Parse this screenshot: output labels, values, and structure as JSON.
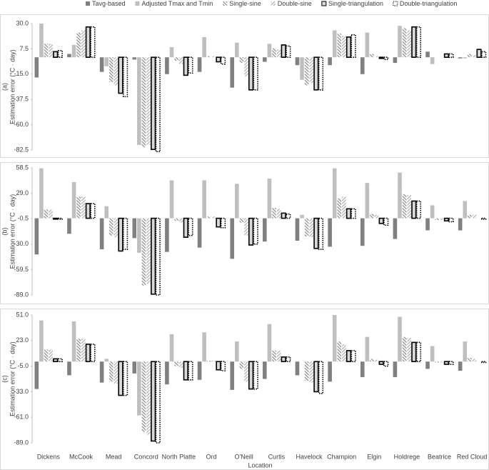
{
  "chart_data": [
    {
      "type": "bar",
      "panel_label": "(a)",
      "y_label": "Estimation  error  (°C · day)",
      "ylim": [
        -82.5,
        30
      ],
      "yticks": [
        {
          "value": -82.5,
          "label": "-82.5"
        },
        {
          "value": -60,
          "label": "-60.0"
        },
        -37.5,
        {
          "value": -15,
          "label": "-15.0"
        },
        7.5,
        {
          "value": 30,
          "label": "30.0"
        }
      ],
      "series": [
        {
          "name": "Tavg-based",
          "color": "#808080",
          "pattern": "solid",
          "values": [
            -18,
            3,
            -13,
            -2,
            -15,
            -13,
            -27,
            -4,
            -7,
            -7,
            -15,
            -5,
            5,
            -1
          ]
        },
        {
          "name": "Adjusted Tmax and Tmin",
          "color": "#bfbfbf",
          "pattern": "solid",
          "values": [
            30,
            11,
            -8,
            -78,
            9,
            18,
            13,
            12,
            -20,
            24,
            22,
            28,
            -6,
            -1
          ]
        },
        {
          "name": "Single-sine",
          "color": "#7f7f7f",
          "pattern": "hatch-back",
          "values": [
            12,
            22,
            -22,
            -80,
            -3,
            1,
            -5,
            8,
            -25,
            21,
            3,
            26,
            0,
            3
          ]
        },
        {
          "name": "Double-sine",
          "color": "#a6a6a6",
          "pattern": "hatch-fwd",
          "values": [
            12,
            24,
            -25,
            -78,
            -6,
            1,
            -17,
            7,
            -23,
            19,
            1,
            24,
            0,
            2
          ]
        },
        {
          "name": "Single-triangulation",
          "color": "#d9d9d9",
          "pattern": "outline",
          "values": [
            5,
            27,
            -32,
            -82,
            -16,
            -4,
            -29,
            11,
            -29,
            18,
            -1,
            27,
            3,
            7
          ]
        },
        {
          "name": "Double-triangulation",
          "color": "#ffffff",
          "pattern": "dotted",
          "values": [
            6,
            27,
            -35,
            -84,
            -14,
            -6,
            -29,
            10,
            -29,
            20,
            -2,
            27,
            3,
            5
          ]
        }
      ]
    },
    {
      "type": "bar",
      "panel_label": "(b)",
      "y_label": "Estimation  error  (°C · day)",
      "ylim": [
        -89,
        58.5
      ],
      "yticks": [
        {
          "value": -89,
          "label": "-89.0"
        },
        -59.5,
        {
          "value": -30,
          "label": "-30.0"
        },
        -0.5,
        {
          "value": 29,
          "label": "29.0"
        },
        58.5
      ],
      "series": [
        {
          "values": [
            -42,
            -18,
            -36,
            -23,
            -39,
            -34,
            -47,
            -27,
            -26,
            -33,
            -32,
            -24,
            -14,
            -14
          ]
        },
        {
          "values": [
            58,
            42,
            14,
            -40,
            44,
            44,
            40,
            46,
            4,
            58,
            41,
            53,
            15,
            20
          ]
        },
        {
          "values": [
            10,
            25,
            -20,
            -78,
            -3,
            2,
            -5,
            12,
            -21,
            23,
            5,
            28,
            -2,
            4
          ]
        },
        {
          "values": [
            10,
            25,
            -22,
            -76,
            -5,
            2,
            -20,
            11,
            -22,
            25,
            4,
            27,
            -2,
            4
          ]
        },
        {
          "values": [
            -1,
            17,
            -38,
            -88,
            -22,
            -10,
            -31,
            6,
            -35,
            11,
            -6,
            20,
            -3,
            0
          ]
        },
        {
          "values": [
            -1,
            17,
            -36,
            -89,
            -20,
            -11,
            -30,
            5,
            -36,
            11,
            -8,
            20,
            -4,
            -1
          ]
        }
      ]
    },
    {
      "type": "bar",
      "panel_label": "(c)",
      "y_label": "Estimation  error  (°C · day)",
      "x_label": "Location",
      "categories": [
        "Dickens",
        "McCook",
        "Mead",
        "Concord",
        "North Platte",
        "Ord",
        "O'Neill",
        "Curtis",
        "Havelock",
        "Champion",
        "Elgin",
        "Holdrege",
        "Beatrice",
        "Red Cloud"
      ],
      "ylim": [
        -89,
        51
      ],
      "yticks": [
        {
          "value": -89,
          "label": "-89.0"
        },
        {
          "value": -61,
          "label": "-61.0"
        },
        {
          "value": -33,
          "label": "-33.0"
        },
        {
          "value": -5,
          "label": "-5.0"
        },
        {
          "value": 23,
          "label": "23.0"
        },
        {
          "value": 51,
          "label": "51.0"
        }
      ],
      "series": [
        {
          "values": [
            -30,
            -15,
            -23,
            -13,
            -25,
            -20,
            -31,
            -19,
            -15,
            -22,
            -17,
            -17,
            -8,
            -10
          ]
        },
        {
          "values": [
            45,
            44,
            3,
            -59,
            30,
            32,
            22,
            41,
            0,
            51,
            27,
            49,
            17,
            22
          ]
        },
        {
          "values": [
            13,
            25,
            -22,
            -77,
            -5,
            1,
            -8,
            12,
            -21,
            22,
            3,
            27,
            -1,
            4
          ]
        },
        {
          "values": [
            13,
            25,
            -24,
            -80,
            -7,
            1,
            -22,
            12,
            -23,
            19,
            2,
            26,
            -1,
            3
          ]
        },
        {
          "values": [
            3,
            19,
            -37,
            -87,
            -20,
            -9,
            -30,
            5,
            -33,
            12,
            -3,
            21,
            -3,
            0
          ]
        },
        {
          "values": [
            3,
            19,
            -37,
            -89,
            -20,
            -10,
            -30,
            5,
            -35,
            12,
            -5,
            21,
            -3,
            -1
          ]
        }
      ]
    }
  ]
}
